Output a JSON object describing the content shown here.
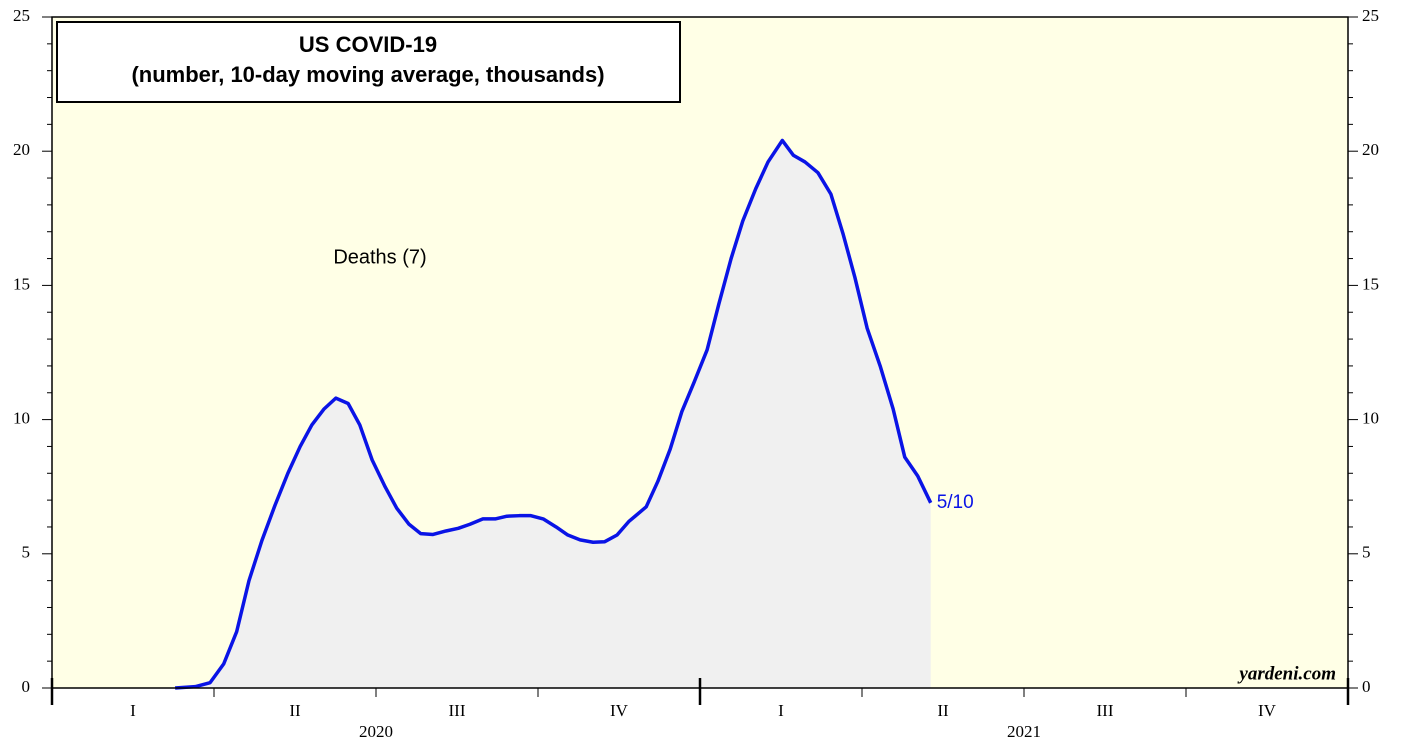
{
  "chart_data": {
    "type": "area",
    "title": "US COVID-19",
    "subtitle": "(number, 10-day moving average, thousands)",
    "annotation": "Deaths (7)",
    "end_label": "5/10",
    "source": "yardeni.com",
    "series": [
      {
        "name": "Deaths (7)",
        "color": "#0a14e6",
        "fill": "#f0f0f0",
        "x": [
          2020.19,
          2020.221,
          2020.244,
          2020.265,
          2020.285,
          2020.304,
          2020.324,
          2020.344,
          2020.364,
          2020.383,
          2020.401,
          2020.42,
          2020.438,
          2020.457,
          2020.475,
          2020.494,
          2020.514,
          2020.532,
          2020.551,
          2020.569,
          2020.588,
          2020.608,
          2020.627,
          2020.645,
          2020.665,
          2020.684,
          2020.702,
          2020.721,
          2020.739,
          2020.758,
          2020.778,
          2020.796,
          2020.815,
          2020.835,
          2020.853,
          2020.872,
          2020.89,
          2020.917,
          2020.935,
          2020.954,
          2020.972,
          2020.991,
          2021.011,
          2021.029,
          2021.048,
          2021.066,
          2021.086,
          2021.105,
          2021.127,
          2021.144,
          2021.162,
          2021.182,
          2021.202,
          2021.221,
          2021.239,
          2021.258,
          2021.278,
          2021.298,
          2021.316,
          2021.336,
          2021.356
        ],
        "values": [
          0,
          0.05,
          0.2,
          0.9,
          2.1,
          4.0,
          5.5,
          6.8,
          8.0,
          9.0,
          9.8,
          10.4,
          10.8,
          10.6,
          9.8,
          8.5,
          7.5,
          6.7,
          6.1,
          5.75,
          5.72,
          5.85,
          5.95,
          6.1,
          6.3,
          6.3,
          6.4,
          6.42,
          6.42,
          6.3,
          6.0,
          5.7,
          5.52,
          5.43,
          5.45,
          5.7,
          6.2,
          6.75,
          7.7,
          8.9,
          10.3,
          11.4,
          12.6,
          14.3,
          16.0,
          17.4,
          18.6,
          19.6,
          20.4,
          19.85,
          19.6,
          19.2,
          18.4,
          16.9,
          15.3,
          13.4,
          12.0,
          10.4,
          8.6,
          7.9,
          6.9
        ]
      }
    ],
    "xlim": [
      2020,
      2022
    ],
    "xticks": [
      {
        "value": 2020.125,
        "label": "I"
      },
      {
        "value": 2020.375,
        "label": "II"
      },
      {
        "value": 2020.625,
        "label": "III"
      },
      {
        "value": 2020.875,
        "label": "IV"
      },
      {
        "value": 2021.125,
        "label": "I"
      },
      {
        "value": 2021.375,
        "label": "II"
      },
      {
        "value": 2021.625,
        "label": "III"
      },
      {
        "value": 2021.875,
        "label": "IV"
      }
    ],
    "quarter_bounds": [
      2020,
      2020.25,
      2020.5,
      2020.75,
      2021,
      2021.25,
      2021.5,
      2021.75,
      2022
    ],
    "year_bounds": [
      2020,
      2021,
      2022
    ],
    "year_labels": [
      {
        "value": 2020.5,
        "label": "2020"
      },
      {
        "value": 2021.5,
        "label": "2021"
      }
    ],
    "ylim": [
      0,
      25
    ],
    "yticks": [
      0,
      5,
      10,
      15,
      20,
      25
    ],
    "y2lim": [
      0,
      25
    ],
    "y2ticks": [
      0,
      5,
      10,
      15,
      20,
      25
    ],
    "yminorticks": [
      1,
      2,
      3,
      4,
      6,
      7,
      8,
      9,
      11,
      12,
      13,
      14,
      16,
      17,
      18,
      19,
      21,
      22,
      23,
      24
    ]
  }
}
